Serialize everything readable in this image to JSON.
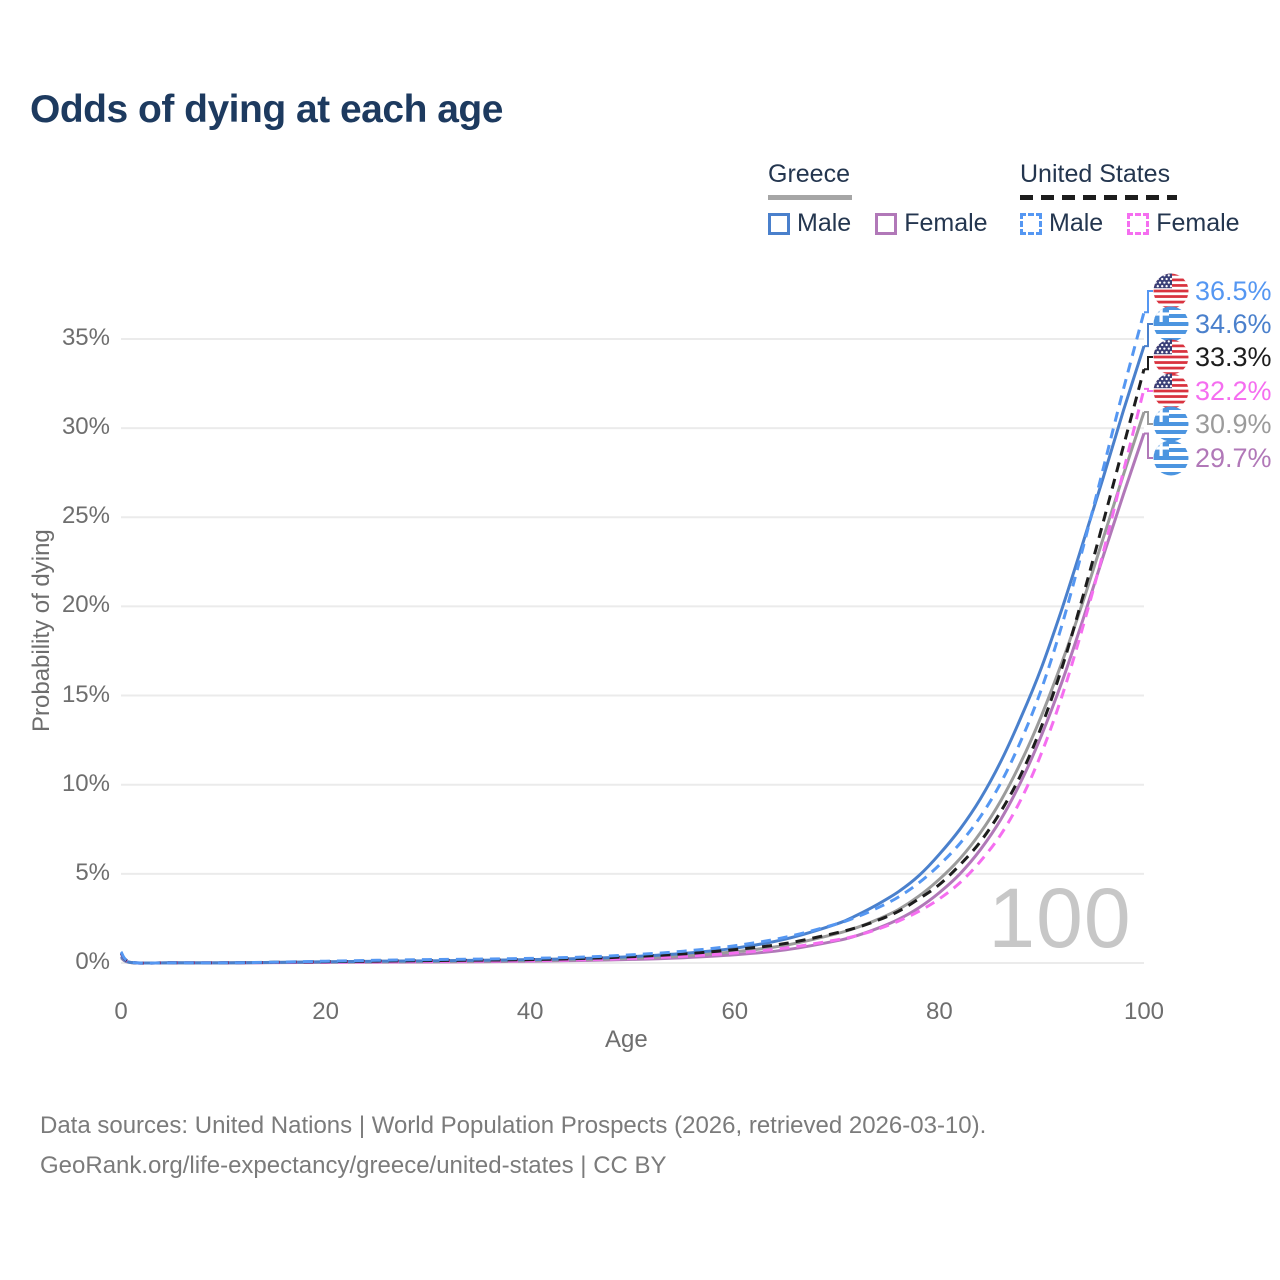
{
  "title": "Odds of dying at each age",
  "watermark": "100",
  "colors": {
    "greece_male": "#4a80cc",
    "greece_female": "#b178b8",
    "greece_total": "#9b9b9b",
    "us_male": "#5597f2",
    "us_female": "#f56ef0",
    "us_total": "#1d1d1d",
    "grid": "#ebebeb",
    "axis_text": "#6e6e6e",
    "title_text": "#1d3a5f"
  },
  "legend": {
    "groups": [
      {
        "name": "Greece",
        "line_style": "solid",
        "underline_color": "#a6a6a6",
        "items": [
          {
            "label": "Male",
            "color": "#4a80cc"
          },
          {
            "label": "Female",
            "color": "#b178b8"
          }
        ]
      },
      {
        "name": "United States",
        "line_style": "dashed",
        "underline_color": "#1d1d1d",
        "items": [
          {
            "label": "Male",
            "color": "#5597f2"
          },
          {
            "label": "Female",
            "color": "#f56ef0"
          }
        ]
      }
    ]
  },
  "chart_data": {
    "type": "line",
    "title": "Odds of dying at each age",
    "xlabel": "Age",
    "ylabel": "Probability of dying",
    "x_ticks": [
      0,
      20,
      40,
      60,
      80,
      100
    ],
    "y_ticks": [
      {
        "label": "0%",
        "value": 0
      },
      {
        "label": "5%",
        "value": 5
      },
      {
        "label": "10%",
        "value": 10
      },
      {
        "label": "15%",
        "value": 15
      },
      {
        "label": "20%",
        "value": 20
      },
      {
        "label": "25%",
        "value": 25
      },
      {
        "label": "30%",
        "value": 30
      },
      {
        "label": "35%",
        "value": 35
      }
    ],
    "xlim": [
      0,
      100
    ],
    "ylim_percent": [
      0,
      38.5
    ],
    "grid": true,
    "legend_position": "top-right",
    "ages": [
      0,
      1,
      5,
      10,
      15,
      20,
      25,
      30,
      35,
      40,
      45,
      50,
      55,
      60,
      65,
      70,
      72,
      74,
      76,
      78,
      80,
      82,
      84,
      86,
      88,
      90,
      92,
      94,
      96,
      98,
      100
    ],
    "series": [
      {
        "name": "Greece Female",
        "country": "Greece",
        "sex": "Female",
        "style": "solid",
        "color": "#b178b8",
        "values": [
          0.3,
          0.022,
          0.007,
          0.006,
          0.02,
          0.033,
          0.045,
          0.057,
          0.075,
          0.1,
          0.14,
          0.2,
          0.3,
          0.46,
          0.74,
          1.25,
          1.55,
          1.95,
          2.45,
          3.1,
          3.95,
          5.0,
          6.35,
          8.05,
          10.2,
          12.8,
          15.8,
          19.2,
          22.8,
          26.3,
          29.7
        ],
        "end_value_pct": 29.7
      },
      {
        "name": "Greece Total",
        "country": "Greece",
        "sex": "Both",
        "style": "solid",
        "color": "#9b9b9b",
        "values": [
          0.33,
          0.025,
          0.008,
          0.007,
          0.028,
          0.05,
          0.07,
          0.085,
          0.105,
          0.14,
          0.19,
          0.27,
          0.41,
          0.63,
          1.0,
          1.65,
          2.0,
          2.45,
          3.0,
          3.75,
          4.7,
          5.85,
          7.3,
          9.1,
          11.3,
          13.9,
          16.9,
          20.2,
          23.8,
          27.4,
          30.9
        ],
        "end_value_pct": 30.9
      },
      {
        "name": "Greece Male",
        "country": "Greece",
        "sex": "Male",
        "style": "solid",
        "color": "#4a80cc",
        "values": [
          0.38,
          0.03,
          0.009,
          0.008,
          0.035,
          0.07,
          0.1,
          0.12,
          0.15,
          0.19,
          0.25,
          0.36,
          0.54,
          0.83,
          1.35,
          2.2,
          2.7,
          3.3,
          4.0,
          4.9,
          6.1,
          7.5,
          9.2,
          11.3,
          13.8,
          16.6,
          19.9,
          23.5,
          27.2,
          31.0,
          34.6
        ],
        "end_value_pct": 34.6
      },
      {
        "name": "United States Female",
        "country": "United States",
        "sex": "Female",
        "style": "dashed",
        "color": "#f56ef0",
        "values": [
          0.53,
          0.037,
          0.01,
          0.009,
          0.03,
          0.047,
          0.062,
          0.083,
          0.105,
          0.13,
          0.18,
          0.26,
          0.38,
          0.56,
          0.84,
          1.3,
          1.55,
          1.9,
          2.35,
          2.9,
          3.6,
          4.5,
          5.7,
          7.2,
          9.2,
          11.8,
          15.0,
          18.8,
          23.0,
          27.6,
          32.2
        ],
        "end_value_pct": 32.2
      },
      {
        "name": "United States Total",
        "country": "United States",
        "sex": "Both",
        "style": "dashed",
        "color": "#1d1d1d",
        "values": [
          0.57,
          0.04,
          0.011,
          0.01,
          0.038,
          0.073,
          0.105,
          0.135,
          0.16,
          0.19,
          0.25,
          0.36,
          0.51,
          0.75,
          1.1,
          1.7,
          2.0,
          2.4,
          2.9,
          3.6,
          4.4,
          5.5,
          6.8,
          8.5,
          10.6,
          13.3,
          16.6,
          20.5,
          24.7,
          29.0,
          33.3
        ],
        "end_value_pct": 33.3
      },
      {
        "name": "United States Male",
        "country": "United States",
        "sex": "Male",
        "style": "dashed",
        "color": "#5597f2",
        "values": [
          0.62,
          0.045,
          0.013,
          0.012,
          0.045,
          0.1,
          0.15,
          0.19,
          0.22,
          0.26,
          0.33,
          0.46,
          0.66,
          0.97,
          1.45,
          2.2,
          2.6,
          3.1,
          3.7,
          4.5,
          5.5,
          6.7,
          8.2,
          10.1,
          12.5,
          15.4,
          19.0,
          23.2,
          27.7,
          32.2,
          36.5
        ],
        "end_value_pct": 36.5
      }
    ],
    "annotations": [
      {
        "flag": "us",
        "text": "36.5%",
        "color": "#5597f2",
        "value": 36.5,
        "series": "United States Male"
      },
      {
        "flag": "greece",
        "text": "34.6%",
        "color": "#4a80cc",
        "value": 34.6,
        "series": "Greece Male"
      },
      {
        "flag": "us",
        "text": "33.3%",
        "color": "#1d1d1d",
        "value": 33.3,
        "series": "United States Total"
      },
      {
        "flag": "us",
        "text": "32.2%",
        "color": "#f56ef0",
        "value": 32.2,
        "series": "United States Female"
      },
      {
        "flag": "greece",
        "text": "30.9%",
        "color": "#9b9b9b",
        "value": 30.9,
        "series": "Greece Total"
      },
      {
        "flag": "greece",
        "text": "29.7%",
        "color": "#b178b8",
        "value": 29.7,
        "series": "Greece Female"
      }
    ]
  },
  "footer": {
    "line1": "Data sources: United Nations | World Population Prospects (2026, retrieved 2026-03-10).",
    "line2": "GeoRank.org/life-expectancy/greece/united-states | CC BY"
  }
}
